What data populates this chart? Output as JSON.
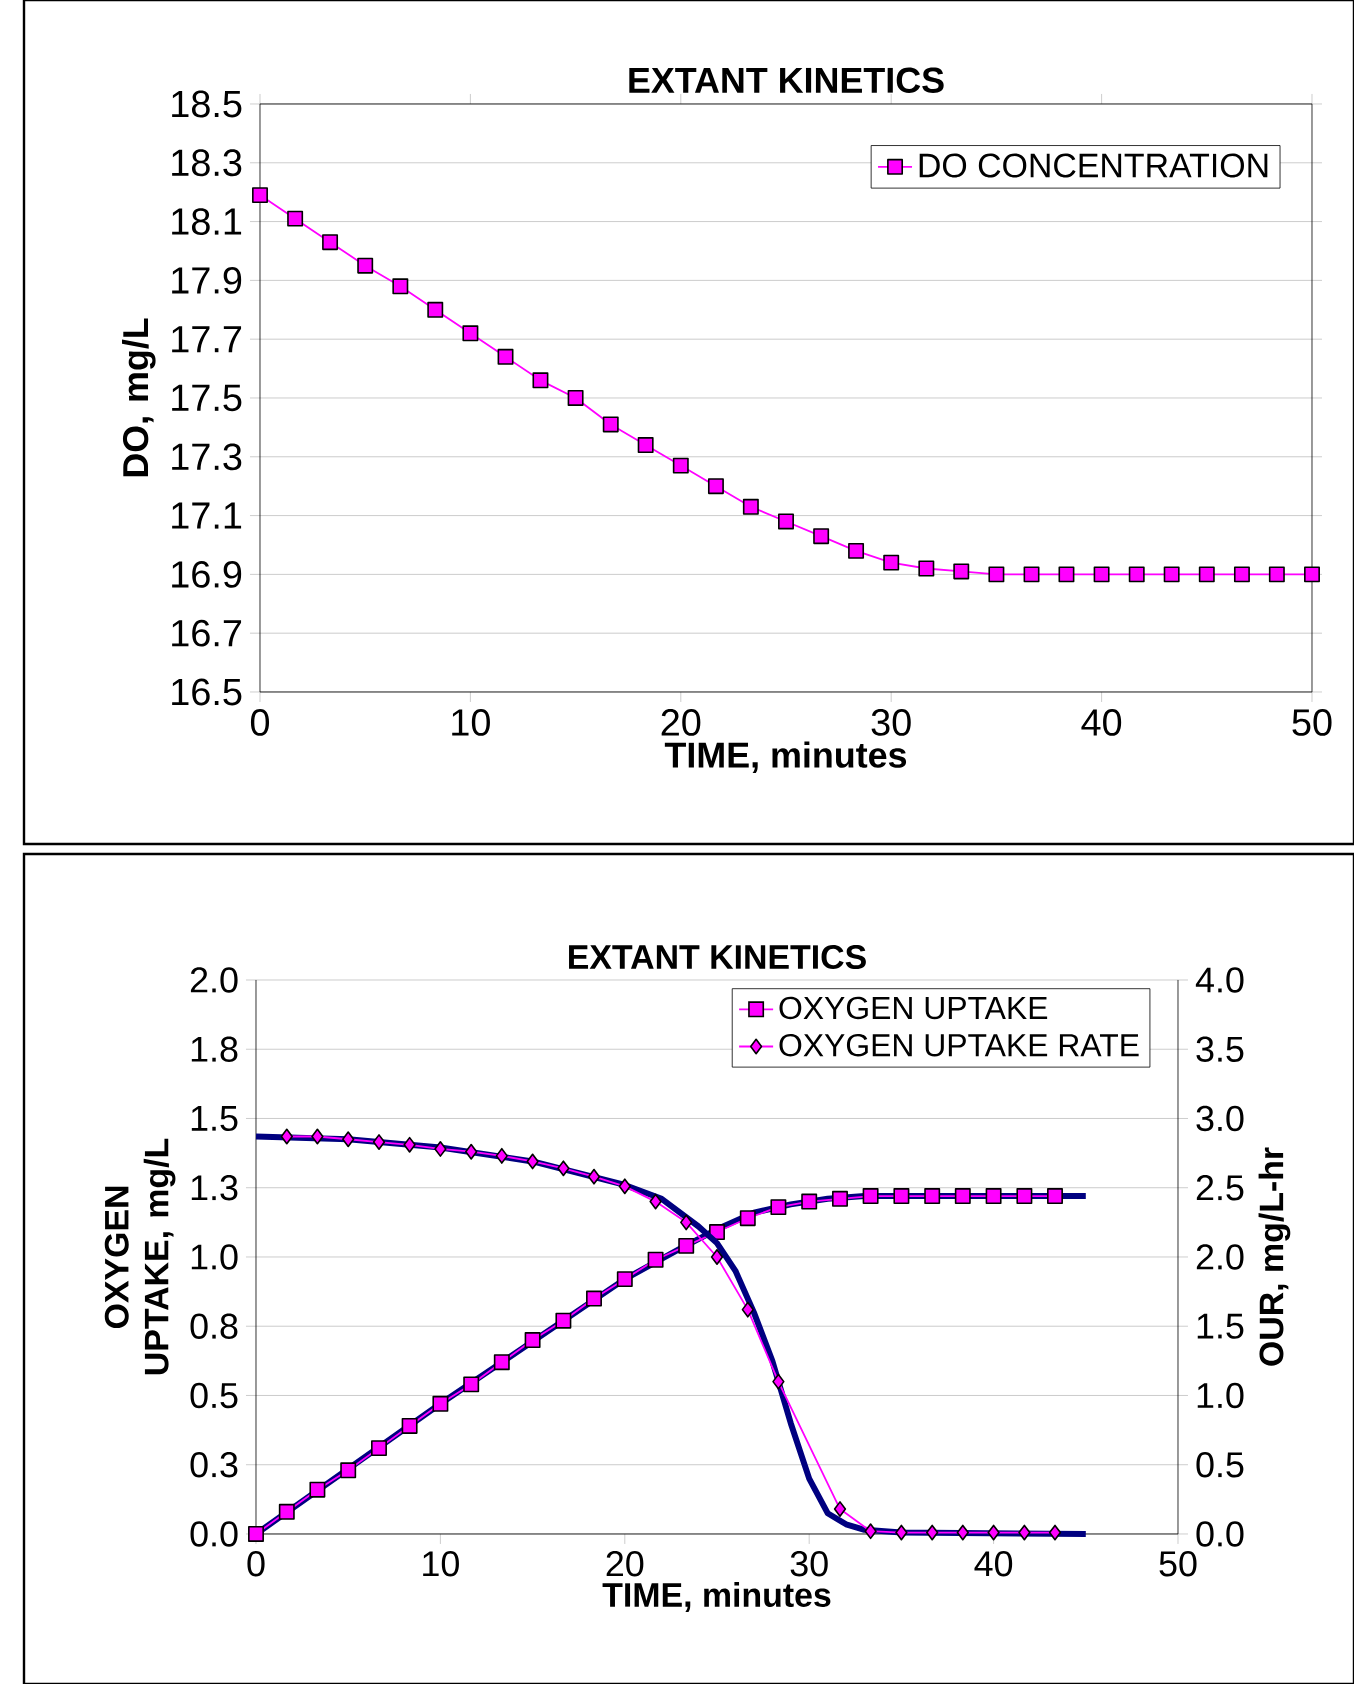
{
  "chart_data": [
    {
      "type": "line",
      "title": "EXTANT KINETICS",
      "xlabel": "TIME, minutes",
      "ylabel": "DO, mg/L",
      "xlim": [
        0,
        50
      ],
      "xticks": [
        0,
        10,
        20,
        30,
        40,
        50
      ],
      "ylim": [
        16.5,
        18.5
      ],
      "yticks": [
        16.5,
        16.7,
        16.9,
        17.1,
        17.3,
        17.5,
        17.7,
        17.9,
        18.1,
        18.3,
        18.5
      ],
      "grid": "y",
      "legend": "top right",
      "series": [
        {
          "name": "DO CONCENTRATION",
          "color": "#ff00ff",
          "marker": "square",
          "x": [
            0,
            1.67,
            3.33,
            5,
            6.67,
            8.33,
            10,
            11.67,
            13.33,
            15,
            16.67,
            18.33,
            20,
            21.67,
            23.33,
            25,
            26.67,
            28.33,
            30,
            31.67,
            33.33,
            35,
            36.67,
            38.33,
            40,
            41.67,
            43.33,
            45,
            46.67,
            48.33,
            50
          ],
          "values": [
            18.19,
            18.11,
            18.03,
            17.95,
            17.88,
            17.8,
            17.72,
            17.64,
            17.56,
            17.5,
            17.41,
            17.34,
            17.27,
            17.2,
            17.13,
            17.08,
            17.03,
            16.98,
            16.94,
            16.92,
            16.91,
            16.9,
            16.9,
            16.9,
            16.9,
            16.9,
            16.9,
            16.9,
            16.9,
            16.9,
            16.9
          ]
        }
      ]
    },
    {
      "type": "line",
      "title": "EXTANT KINETICS",
      "xlabel": "TIME, minutes",
      "ylabel": "OXYGEN UPTAKE, mg/L",
      "y2label": "OUR, mg/L-hr",
      "xlim": [
        0,
        50
      ],
      "xticks": [
        0,
        10,
        20,
        30,
        40,
        50
      ],
      "ylim": [
        0,
        2
      ],
      "yticks": [
        {
          "value": 0,
          "label": "0.0"
        },
        {
          "value": 0.25,
          "label": "0.3"
        },
        {
          "value": 0.5,
          "label": "0.5"
        },
        {
          "value": 0.75,
          "label": "0.8"
        },
        {
          "value": 1,
          "label": "1.0"
        },
        {
          "value": 1.25,
          "label": "1.3"
        },
        {
          "value": 1.5,
          "label": "1.5"
        },
        {
          "value": 1.75,
          "label": "1.8"
        },
        {
          "value": 2,
          "label": "2.0"
        }
      ],
      "y2lim": [
        0,
        4
      ],
      "y2ticks": [
        {
          "value": 0,
          "label": "0.0"
        },
        0.5,
        {
          "value": 1,
          "label": "1.0"
        },
        1.5,
        {
          "value": 2,
          "label": "2.0"
        },
        2.5,
        {
          "value": 3,
          "label": "3.0"
        },
        3.5,
        {
          "value": 4,
          "label": "4.0"
        }
      ],
      "grid": "y",
      "legend": "top right",
      "series": [
        {
          "color": "#000080",
          "marker": "none",
          "x": [
            0,
            10,
            20,
            23,
            25,
            27,
            29,
            31,
            33,
            45
          ],
          "values": [
            0,
            0.47,
            0.92,
            1.03,
            1.1,
            1.16,
            1.19,
            1.21,
            1.22,
            1.22
          ]
        },
        {
          "color": "#000080",
          "marker": "none",
          "axis": "y2",
          "x": [
            0,
            5,
            10,
            15,
            20,
            22,
            24,
            25,
            26,
            27,
            28,
            29,
            30,
            31,
            32,
            33,
            35,
            45
          ],
          "values": [
            2.87,
            2.85,
            2.79,
            2.69,
            2.52,
            2.42,
            2.22,
            2.1,
            1.9,
            1.6,
            1.25,
            0.8,
            0.4,
            0.15,
            0.07,
            0.03,
            0.01,
            0
          ]
        },
        {
          "name": "OXYGEN UPTAKE",
          "color": "#ff00ff",
          "marker": "square",
          "x": [
            0,
            1.67,
            3.33,
            5,
            6.67,
            8.33,
            10,
            11.67,
            13.33,
            15,
            16.67,
            18.33,
            20,
            21.67,
            23.33,
            25,
            26.67,
            28.33,
            30,
            31.67,
            33.33,
            35,
            36.67,
            38.33,
            40,
            41.67,
            43.33
          ],
          "values": [
            0,
            0.08,
            0.16,
            0.23,
            0.31,
            0.39,
            0.47,
            0.54,
            0.62,
            0.7,
            0.77,
            0.85,
            0.92,
            0.99,
            1.04,
            1.09,
            1.14,
            1.18,
            1.2,
            1.21,
            1.22,
            1.22,
            1.22,
            1.22,
            1.22,
            1.22,
            1.22
          ]
        },
        {
          "name": "OXYGEN UPTAKE RATE",
          "color": "#ff00ff",
          "marker": "diamond",
          "axis": "y2",
          "x": [
            1.67,
            3.33,
            5,
            6.67,
            8.33,
            10,
            11.67,
            13.33,
            15,
            16.67,
            18.33,
            20,
            21.67,
            23.33,
            25,
            26.67,
            28.33,
            31.67,
            33.33,
            35,
            36.67,
            38.33,
            40,
            41.67,
            43.33
          ],
          "values": [
            2.87,
            2.87,
            2.85,
            2.83,
            2.81,
            2.78,
            2.76,
            2.73,
            2.69,
            2.64,
            2.58,
            2.51,
            2.4,
            2.25,
            2.0,
            1.62,
            1.1,
            0.18,
            0.02,
            0.01,
            0.01,
            0.01,
            0.01,
            0.01,
            0.01
          ]
        }
      ]
    }
  ]
}
